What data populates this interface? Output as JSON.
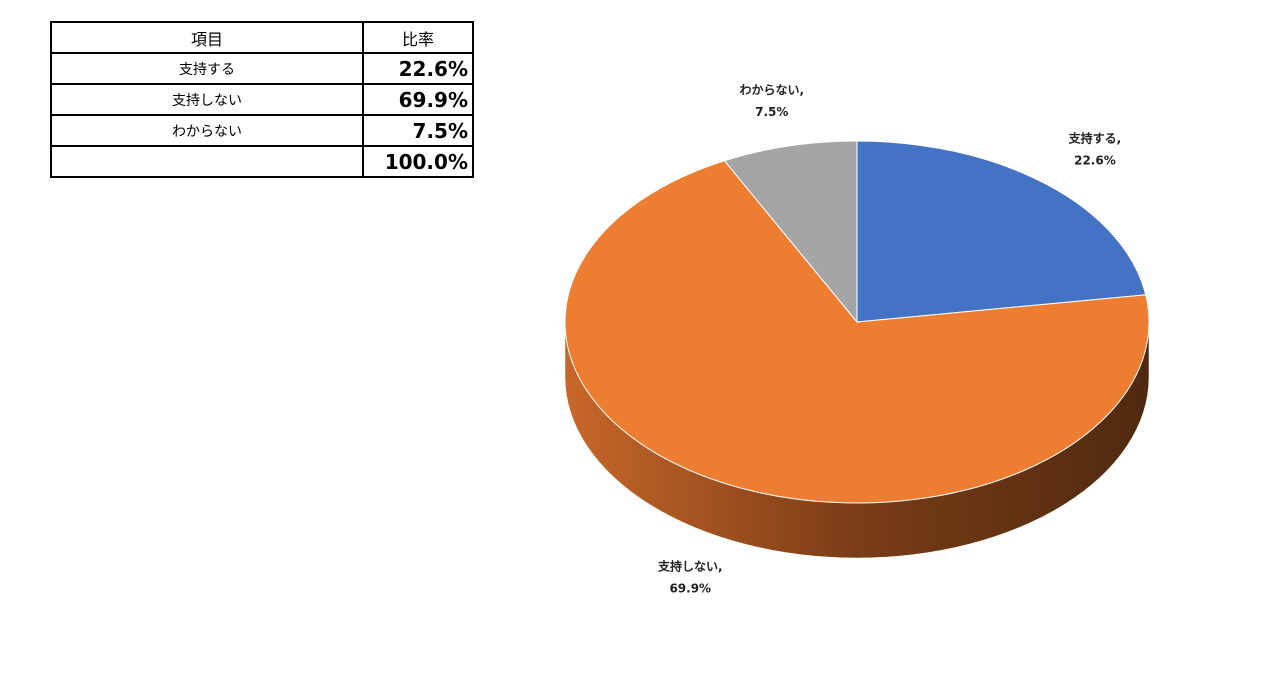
{
  "table": {
    "header": [
      "項目",
      "比率"
    ],
    "rows": [
      [
        "支持する",
        "22.6%"
      ],
      [
        "支持しない",
        "69.9%"
      ],
      [
        "わからない",
        "7.5%"
      ]
    ],
    "total": "100.0%"
  },
  "chart_data": {
    "type": "pie",
    "categories": [
      "支持する",
      "支持しない",
      "わからない"
    ],
    "values": [
      22.6,
      69.9,
      7.5
    ],
    "value_labels": [
      "22.6%",
      "69.9%",
      "7.5%"
    ],
    "label_separator": ",",
    "colors": [
      "#4472c4",
      "#ed7d31",
      "#a5a5a5"
    ]
  }
}
